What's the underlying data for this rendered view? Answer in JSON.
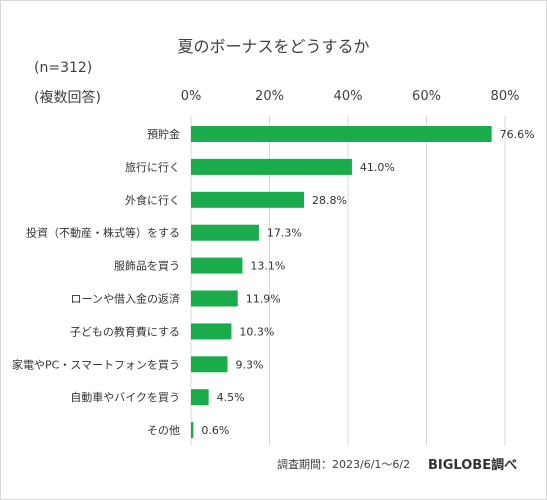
{
  "chart_data": {
    "type": "bar",
    "orientation": "horizontal",
    "title": "夏のボーナスをどうするか",
    "sample_note": "(n=312)",
    "answer_note": "(複数回答)",
    "categories": [
      "預貯金",
      "旅行に行く",
      "外食に行く",
      "投資（不動産・株式等）をする",
      "服飾品を買う",
      "ローンや借入金の返済",
      "子どもの教育費にする",
      "家電やPC・スマートフォンを買う",
      "自動車やバイクを買う",
      "その他"
    ],
    "values": [
      76.6,
      41.0,
      28.8,
      17.3,
      13.1,
      11.9,
      10.3,
      9.3,
      4.5,
      0.6
    ],
    "value_labels": [
      "76.6%",
      "41.0%",
      "28.8%",
      "17.3%",
      "13.1%",
      "11.9%",
      "10.3%",
      "9.3%",
      "4.5%",
      "0.6%"
    ],
    "xlim": [
      0,
      80
    ],
    "x_ticks": [
      0,
      20,
      40,
      60,
      80
    ],
    "x_tick_labels": [
      "0%",
      "20%",
      "40%",
      "60%",
      "80%"
    ],
    "x_axis_position": "top",
    "grid": true,
    "legend": "none",
    "bar_color": "#1aab4b",
    "grid_color": "#d9d9d9"
  },
  "footer": {
    "survey_period": "調査期間：2023/6/1～6/2",
    "source": "BIGLOBE調べ"
  }
}
